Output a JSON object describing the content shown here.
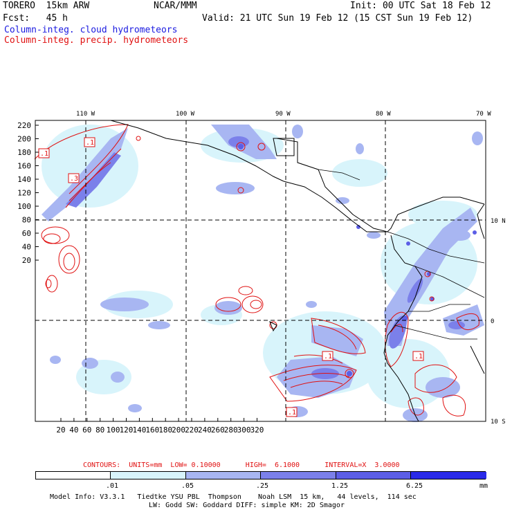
{
  "header": {
    "line1_left": "TORERO  15km ARW",
    "line1_center": "NCAR/MMM",
    "line1_right": "Init: 00 UTC Sat 18 Feb 12",
    "line2_left": "Fcst:   45 h",
    "line2_right": "Valid: 21 UTC Sun 19 Feb 12 (15 CST Sun 19 Feb 12)",
    "legend_cloud": "Column-integ. cloud hydrometeors",
    "legend_precip": "Column-integ. precip. hydrometeors"
  },
  "map": {
    "top_longitude_labels": [
      "110 W",
      "100 W",
      "90 W",
      "80 W",
      "70 W"
    ],
    "right_latitude_labels": [
      "10 N",
      "0",
      "10 S"
    ],
    "left_y_ticks": [
      "220",
      "200",
      "180",
      "160",
      "140",
      "120",
      "100",
      "80",
      "60",
      "40",
      "20"
    ],
    "bottom_x_ticks": [
      "20",
      "40",
      "60",
      "80",
      "100",
      "120",
      "140",
      "160",
      "180",
      "200",
      "220",
      "240",
      "260",
      "280",
      "300",
      "320"
    ],
    "contour_labels": [
      ".1",
      ".1",
      ".3",
      ".1",
      ".1",
      ".1"
    ],
    "colors": {
      "cloud_light": "#d8f4fb",
      "cloud_mid": "#a8b6f2",
      "cloud_dark": "#7b80ea",
      "cloud_deep": "#5c5ee6",
      "precip_contour": "#e01010",
      "coast": "#000000"
    }
  },
  "contour_info": {
    "text": "CONTOURS:  UNITS=mm  LOW= 0.10000      HIGH=  6.1000      INTERVAL=X  3.0000"
  },
  "colorbar": {
    "labels": [
      ".01",
      ".05",
      ".25",
      "1.25",
      "6.25"
    ],
    "unit": "mm",
    "colors": [
      "#ffffff",
      "#d8f4fb",
      "#b8e8f8",
      "#a8b6f2",
      "#7b80ea",
      "#5c5ee6",
      "#2a2ae8"
    ]
  },
  "footer": {
    "line1": "Model Info: V3.3.1   Tiedtke YSU PBL  Thompson    Noah LSM  15 km,   44 levels,  114 sec",
    "line2": "LW: Godd SW: Goddard DIFF: simple KM: 2D Smagor"
  }
}
